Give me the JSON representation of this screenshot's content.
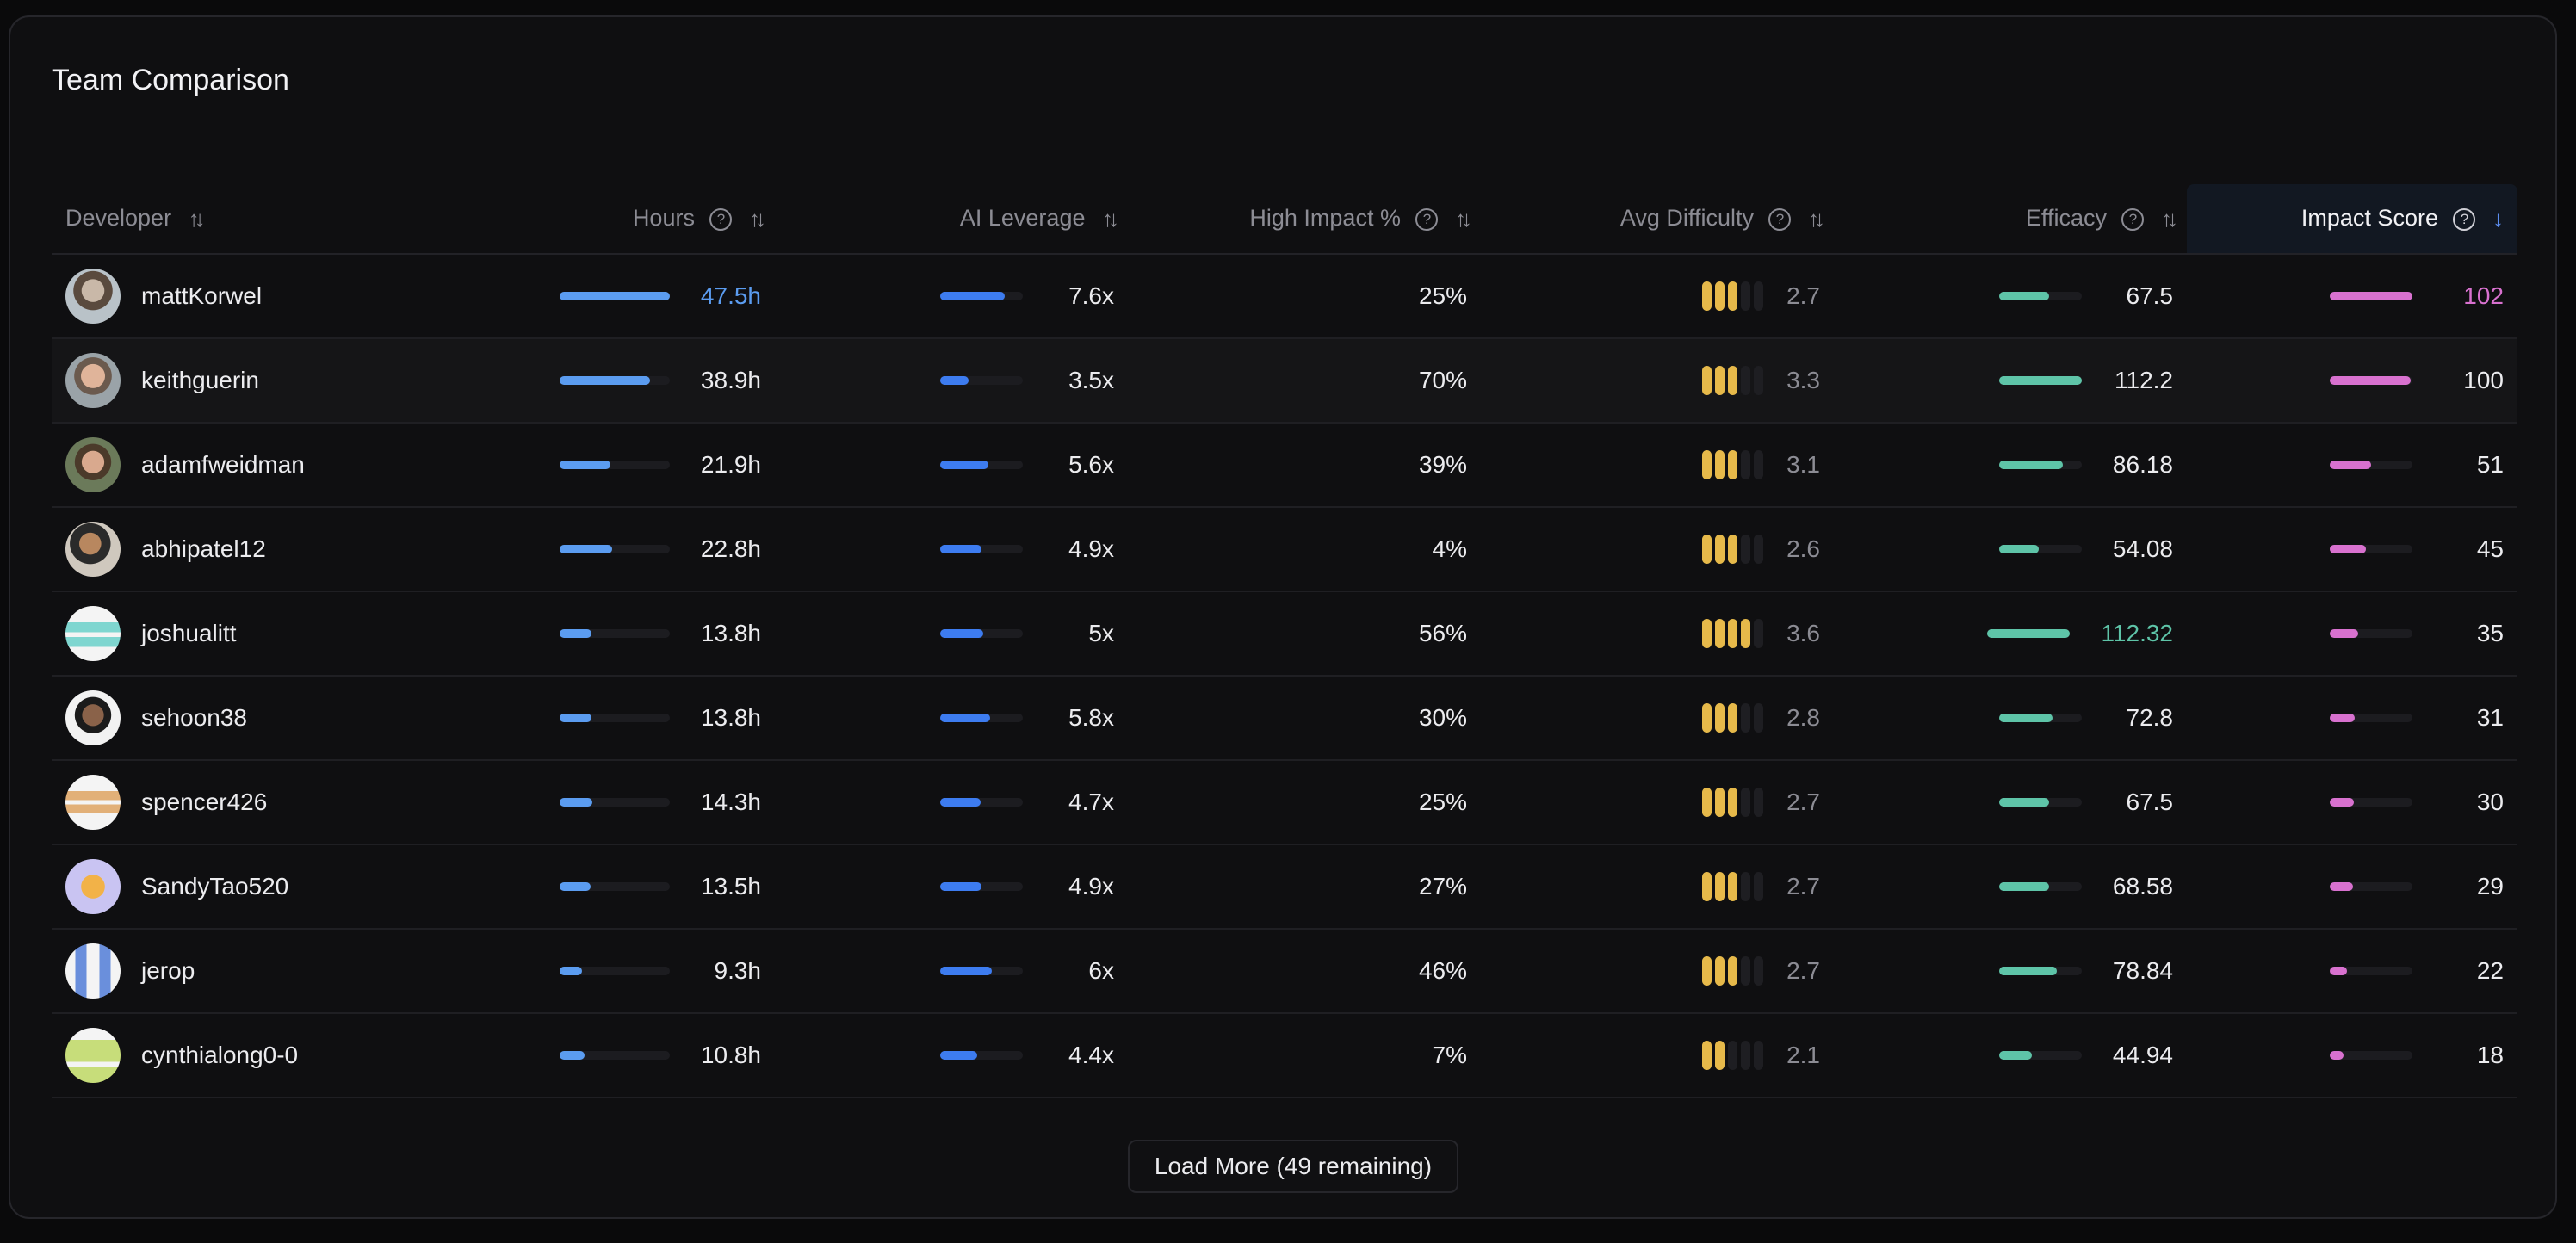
{
  "title": "Team Comparison",
  "headers": {
    "developer": "Developer",
    "hours": "Hours",
    "ai_leverage": "AI Leverage",
    "high_impact": "High Impact %",
    "avg_difficulty": "Avg Difficulty",
    "efficacy": "Efficacy",
    "impact_score": "Impact Score"
  },
  "colors": {
    "hours": "#5b9cf0",
    "hours_highlight": "#5b9cf0",
    "ai": "#3d7cf0",
    "efficacy": "#5ec4a8",
    "efficacy_highlight": "#5ec4a8",
    "impact": "#d871cf",
    "impact_highlight": "#d871cf",
    "difficulty": "#e6b94a"
  },
  "rows": [
    {
      "name": "mattKorwel",
      "avatar": "avatar-photo-1",
      "hours": "47.5h",
      "hours_frac": 1.0,
      "ai": "7.6x",
      "ai_frac": 0.78,
      "high_impact": "25%",
      "difficulty_value": "2.7",
      "difficulty_level": 3,
      "efficacy": "67.5",
      "efficacy_frac": 0.6,
      "impact": "102",
      "impact_frac": 1.0,
      "hl_hours": true,
      "hl_eff": false,
      "hl_impact": true
    },
    {
      "name": "keithguerin",
      "avatar": "avatar-photo-2",
      "hours": "38.9h",
      "hours_frac": 0.82,
      "ai": "3.5x",
      "ai_frac": 0.34,
      "high_impact": "70%",
      "difficulty_value": "3.3",
      "difficulty_level": 3,
      "efficacy": "112.2",
      "efficacy_frac": 1.0,
      "impact": "100",
      "impact_frac": 0.98,
      "hl_hours": false,
      "hl_eff": false,
      "hl_impact": false
    },
    {
      "name": "adamfweidman",
      "avatar": "avatar-photo-3",
      "hours": "21.9h",
      "hours_frac": 0.46,
      "ai": "5.6x",
      "ai_frac": 0.58,
      "high_impact": "39%",
      "difficulty_value": "3.1",
      "difficulty_level": 3,
      "efficacy": "86.18",
      "efficacy_frac": 0.77,
      "impact": "51",
      "impact_frac": 0.5,
      "hl_hours": false,
      "hl_eff": false,
      "hl_impact": false
    },
    {
      "name": "abhipatel12",
      "avatar": "avatar-photo-4",
      "hours": "22.8h",
      "hours_frac": 0.48,
      "ai": "4.9x",
      "ai_frac": 0.5,
      "high_impact": "4%",
      "difficulty_value": "2.6",
      "difficulty_level": 3,
      "efficacy": "54.08",
      "efficacy_frac": 0.48,
      "impact": "45",
      "impact_frac": 0.44,
      "hl_hours": false,
      "hl_eff": false,
      "hl_impact": false
    },
    {
      "name": "joshualitt",
      "avatar": "avatar-identicon-teal",
      "hours": "13.8h",
      "hours_frac": 0.29,
      "ai": "5x",
      "ai_frac": 0.52,
      "high_impact": "56%",
      "difficulty_value": "3.6",
      "difficulty_level": 4,
      "efficacy": "112.32",
      "efficacy_frac": 1.0,
      "impact": "35",
      "impact_frac": 0.34,
      "hl_hours": false,
      "hl_eff": true,
      "hl_impact": false
    },
    {
      "name": "sehoon38",
      "avatar": "avatar-photo-5",
      "hours": "13.8h",
      "hours_frac": 0.29,
      "ai": "5.8x",
      "ai_frac": 0.6,
      "high_impact": "30%",
      "difficulty_value": "2.8",
      "difficulty_level": 3,
      "efficacy": "72.8",
      "efficacy_frac": 0.65,
      "impact": "31",
      "impact_frac": 0.3,
      "hl_hours": false,
      "hl_eff": false,
      "hl_impact": false
    },
    {
      "name": "spencer426",
      "avatar": "avatar-identicon-orange",
      "hours": "14.3h",
      "hours_frac": 0.3,
      "ai": "4.7x",
      "ai_frac": 0.49,
      "high_impact": "25%",
      "difficulty_value": "2.7",
      "difficulty_level": 3,
      "efficacy": "67.5",
      "efficacy_frac": 0.6,
      "impact": "30",
      "impact_frac": 0.29,
      "hl_hours": false,
      "hl_eff": false,
      "hl_impact": false
    },
    {
      "name": "SandyTao520",
      "avatar": "avatar-cartoon-tiger",
      "hours": "13.5h",
      "hours_frac": 0.28,
      "ai": "4.9x",
      "ai_frac": 0.5,
      "high_impact": "27%",
      "difficulty_value": "2.7",
      "difficulty_level": 3,
      "efficacy": "68.58",
      "efficacy_frac": 0.61,
      "impact": "29",
      "impact_frac": 0.28,
      "hl_hours": false,
      "hl_eff": false,
      "hl_impact": false
    },
    {
      "name": "jerop",
      "avatar": "avatar-identicon-blue",
      "hours": "9.3h",
      "hours_frac": 0.2,
      "ai": "6x",
      "ai_frac": 0.62,
      "high_impact": "46%",
      "difficulty_value": "2.7",
      "difficulty_level": 3,
      "efficacy": "78.84",
      "efficacy_frac": 0.7,
      "impact": "22",
      "impact_frac": 0.21,
      "hl_hours": false,
      "hl_eff": false,
      "hl_impact": false
    },
    {
      "name": "cynthialong0-0",
      "avatar": "avatar-identicon-lime",
      "hours": "10.8h",
      "hours_frac": 0.23,
      "ai": "4.4x",
      "ai_frac": 0.45,
      "high_impact": "7%",
      "difficulty_value": "2.1",
      "difficulty_level": 2,
      "efficacy": "44.94",
      "efficacy_frac": 0.4,
      "impact": "18",
      "impact_frac": 0.17,
      "hl_hours": false,
      "hl_eff": false,
      "hl_impact": false
    }
  ],
  "load_more": "Load More (49 remaining)"
}
